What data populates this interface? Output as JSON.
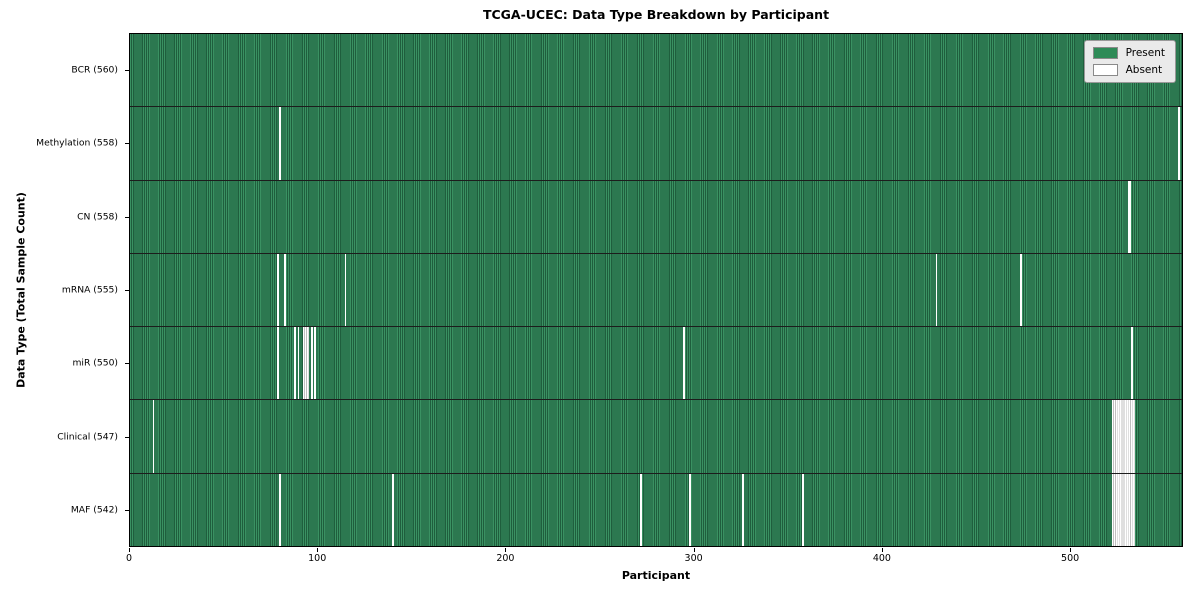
{
  "title": "TCGA-UCEC: Data Type Breakdown by Participant",
  "axes": {
    "xlabel": "Participant",
    "ylabel": "Data Type (Total Sample Count)"
  },
  "legend": {
    "present_label": "Present",
    "absent_label": "Absent"
  },
  "colors": {
    "present": "#2e8b57",
    "absent": "#ffffff",
    "legend_background": "#eaeaea"
  },
  "chart_data": {
    "type": "heatmap",
    "title": "TCGA-UCEC: Data Type Breakdown by Participant",
    "xlabel": "Participant",
    "ylabel": "Data Type (Total Sample Count)",
    "xlim": [
      0,
      560
    ],
    "x_ticks": [
      0,
      100,
      200,
      300,
      400,
      500
    ],
    "n_participants": 560,
    "legend_entries": [
      "Present",
      "Absent"
    ],
    "legend_position": "upper right",
    "grid": false,
    "rows": [
      {
        "label": "BCR (560)",
        "data_type": "BCR",
        "total_sample_count": 560,
        "absent_participants": []
      },
      {
        "label": "Methylation (558)",
        "data_type": "Methylation",
        "total_sample_count": 558,
        "absent_participants": [
          79,
          557
        ]
      },
      {
        "label": "CN (558)",
        "data_type": "CN",
        "total_sample_count": 558,
        "absent_participants": [
          530,
          531
        ]
      },
      {
        "label": "mRNA (555)",
        "data_type": "mRNA",
        "total_sample_count": 555,
        "absent_participants": [
          78,
          82,
          114,
          428,
          473
        ]
      },
      {
        "label": "miR (550)",
        "data_type": "miR",
        "total_sample_count": 550,
        "absent_participants": [
          78,
          87,
          89,
          92,
          93,
          94,
          96,
          98,
          294,
          532
        ]
      },
      {
        "label": "Clinical (547)",
        "data_type": "Clinical",
        "total_sample_count": 547,
        "absent_participants": [
          12,
          522,
          523,
          524,
          525,
          526,
          527,
          528,
          529,
          530,
          531,
          532,
          533
        ]
      },
      {
        "label": "MAF (542)",
        "data_type": "MAF",
        "total_sample_count": 542,
        "absent_participants": [
          79,
          139,
          271,
          297,
          325,
          357,
          522,
          523,
          524,
          525,
          526,
          527,
          528,
          529,
          530,
          531,
          532,
          533
        ]
      }
    ]
  }
}
